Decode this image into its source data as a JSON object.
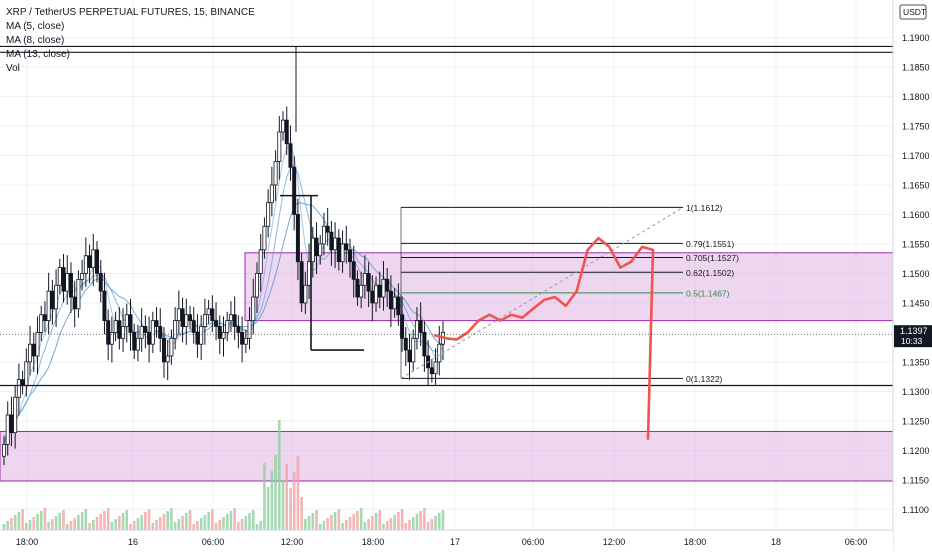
{
  "header": {
    "symbol_line": "XRP / TetherUS PERPETUAL FUTURES, 15, BINANCE",
    "indicators": [
      "MA (5, close)",
      "MA (8, close)",
      "MA (13, close)",
      "Vol"
    ]
  },
  "currency_label": "USDT",
  "price_badge": {
    "price": "1.1397",
    "countdown": "10:33"
  },
  "colors": {
    "up": "#131722",
    "down": "#131722",
    "grid": "#eef0f3",
    "zone_fill": "#d9a3e0",
    "zone_stroke": "#9c27b0",
    "path": "#f0544f",
    "ma_blue": "#5b9bd5",
    "vol_green": "#8fcf9f",
    "vol_red": "#f3a3a3",
    "fib_green": "#2e8b3e",
    "badge": "#131722"
  },
  "chart_data": {
    "type": "candlestick",
    "symbol": "XRP / TetherUS PERPETUAL FUTURES",
    "interval": "15",
    "exchange": "BINANCE",
    "ylim": [
      1.107,
      1.194
    ],
    "y_ticks": [
      "1.1900",
      "1.1850",
      "1.1800",
      "1.1750",
      "1.1700",
      "1.1650",
      "1.1600",
      "1.1550",
      "1.1500",
      "1.1450",
      "1.1400",
      "1.1350",
      "1.1300",
      "1.1250",
      "1.1200",
      "1.1150",
      "1.1100"
    ],
    "x_ticks": [
      "18:00",
      "16",
      "06:00",
      "12:00",
      "18:00",
      "17",
      "06:00",
      "12:00",
      "18:00",
      "18",
      "06:00"
    ],
    "candles_close": [
      1.121,
      1.126,
      1.123,
      1.129,
      1.132,
      1.131,
      1.135,
      1.138,
      1.136,
      1.14,
      1.143,
      1.142,
      1.147,
      1.144,
      1.148,
      1.151,
      1.147,
      1.15,
      1.146,
      1.144,
      1.149,
      1.15,
      1.153,
      1.151,
      1.154,
      1.15,
      1.147,
      1.142,
      1.138,
      1.14,
      1.142,
      1.139,
      1.141,
      1.143,
      1.14,
      1.137,
      1.139,
      1.141,
      1.14,
      1.138,
      1.142,
      1.141,
      1.139,
      1.135,
      1.136,
      1.139,
      1.142,
      1.144,
      1.141,
      1.143,
      1.142,
      1.14,
      1.138,
      1.141,
      1.143,
      1.144,
      1.142,
      1.141,
      1.139,
      1.14,
      1.142,
      1.143,
      1.141,
      1.14,
      1.138,
      1.139,
      1.142,
      1.146,
      1.15,
      1.154,
      1.158,
      1.162,
      1.165,
      1.169,
      1.174,
      1.176,
      1.172,
      1.168,
      1.16,
      1.152,
      1.145,
      1.148,
      1.152,
      1.156,
      1.153,
      1.155,
      1.158,
      1.157,
      1.154,
      1.156,
      1.152,
      1.155,
      1.154,
      1.152,
      1.149,
      1.146,
      1.148,
      1.15,
      1.147,
      1.145,
      1.148,
      1.146,
      1.149,
      1.147,
      1.144,
      1.146,
      1.143,
      1.139,
      1.137,
      1.135,
      1.139,
      1.142,
      1.14,
      1.136,
      1.134,
      1.133,
      1.135,
      1.138,
      1.14
    ],
    "moving_averages": [
      "MA (5, close)",
      "MA (8, close)",
      "MA (13, close)"
    ],
    "horizontal_levels": [
      1.1885,
      1.1875,
      1.131
    ],
    "zones": [
      {
        "from": 1.142,
        "to": 1.1535
      },
      {
        "from": 1.1148,
        "to": 1.1232
      }
    ],
    "fibonacci": [
      {
        "label": "1(1.1612)",
        "value": 1.1612
      },
      {
        "label": "0.79(1.1551)",
        "value": 1.1551
      },
      {
        "label": "0.705(1.1527)",
        "value": 1.1527
      },
      {
        "label": "0.62(1.1502)",
        "value": 1.1502
      },
      {
        "label": "0.5(1.1467)",
        "value": 1.1467
      },
      {
        "label": "0(1.1322)",
        "value": 1.1322
      }
    ],
    "current_price": 1.1397,
    "projected_path_prices": [
      1.1395,
      1.139,
      1.1388,
      1.14,
      1.142,
      1.143,
      1.142,
      1.143,
      1.1425,
      1.144,
      1.1455,
      1.146,
      1.1445,
      1.147,
      1.154,
      1.156,
      1.1545,
      1.151,
      1.152,
      1.1545,
      1.154,
      1.122
    ]
  }
}
